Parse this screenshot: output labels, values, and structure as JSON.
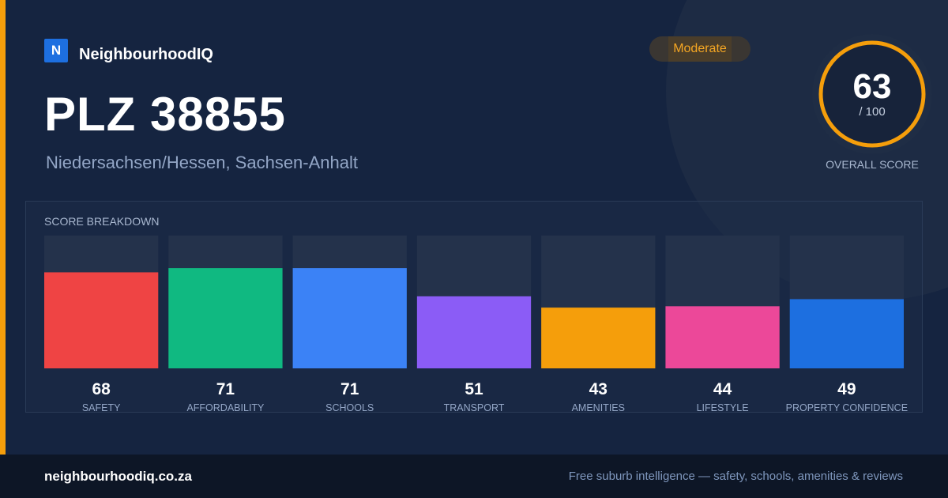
{
  "brand": {
    "logo_letter": "N",
    "name": "NeighbourhoodIQ"
  },
  "title": "PLZ 38855",
  "subtitle": "Niedersachsen/Hessen, Sachsen-Anhalt",
  "badge": "Moderate",
  "overall_score": {
    "value": "63",
    "max": "/ 100",
    "caption": "OVERALL SCORE",
    "fraction": 0.63
  },
  "breakdown_heading": "SCORE BREAKDOWN",
  "footer": {
    "domain": "neighbourhoodiq.co.za",
    "tagline": "Free suburb intelligence — safety, schools, amenities & reviews"
  },
  "colors": {
    "accent": "#f59e0b",
    "background": "#152440",
    "track": "#24324b"
  },
  "chart_data": {
    "type": "bar",
    "title": "SCORE BREAKDOWN",
    "categories": [
      "SAFETY",
      "AFFORDABILITY",
      "SCHOOLS",
      "TRANSPORT",
      "AMENITIES",
      "LIFESTYLE",
      "PROPERTY CONFIDENCE"
    ],
    "values": [
      68,
      71,
      71,
      51,
      43,
      44,
      49
    ],
    "colors": [
      "#ef4444",
      "#10b981",
      "#3b82f6",
      "#8b5cf6",
      "#f59e0b",
      "#ec4899",
      "#1d6fe0"
    ],
    "ylim": [
      0,
      100
    ],
    "grid": false,
    "legend": "none"
  }
}
